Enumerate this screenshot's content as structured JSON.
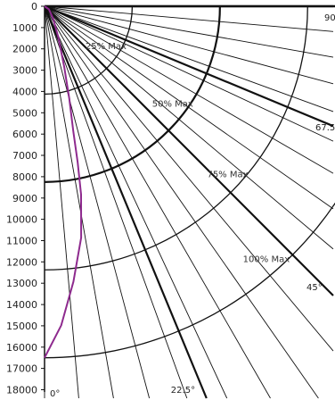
{
  "chart_data": {
    "type": "polar-distribution",
    "y_axis": {
      "ticks": [
        0,
        1000,
        2000,
        3000,
        4000,
        5000,
        6000,
        7000,
        8000,
        9000,
        10000,
        11000,
        12000,
        13000,
        14000,
        15000,
        16000,
        17000,
        18000
      ],
      "min": 0,
      "max": 18000
    },
    "angle_rays": [
      0,
      5,
      10,
      15,
      20,
      22.5,
      25,
      30,
      35,
      40,
      45,
      50,
      55,
      60,
      65,
      67.5,
      70,
      75,
      80,
      85,
      90
    ],
    "major_angles": [
      22.5,
      45,
      67.5,
      90
    ],
    "angle_labels": [
      {
        "angle": 0,
        "text": "0°"
      },
      {
        "angle": 22.5,
        "text": "22.5°"
      },
      {
        "angle": 45,
        "text": "45°"
      },
      {
        "angle": 67.5,
        "text": "67.5"
      },
      {
        "angle": 90,
        "text": "90"
      }
    ],
    "arcs": [
      {
        "radius": 4125,
        "label": "25% Max",
        "label_angle": 55
      },
      {
        "radius": 8250,
        "label": "50% Max",
        "label_angle": 52
      },
      {
        "radius": 12375,
        "label": "75% Max",
        "label_angle": 47
      },
      {
        "radius": 16500,
        "label": "100% Max",
        "label_angle": 41
      }
    ],
    "distribution_curve": {
      "color": "#8e2a8e",
      "points": [
        {
          "angle": 0,
          "value": 16500
        },
        {
          "angle": 3,
          "value": 15000
        },
        {
          "angle": 6,
          "value": 13000
        },
        {
          "angle": 9,
          "value": 11000
        },
        {
          "angle": 11,
          "value": 9000
        },
        {
          "angle": 12,
          "value": 7500
        },
        {
          "angle": 13,
          "value": 6000
        },
        {
          "angle": 15,
          "value": 4500
        },
        {
          "angle": 18,
          "value": 3000
        },
        {
          "angle": 24,
          "value": 1600
        },
        {
          "angle": 35,
          "value": 700
        },
        {
          "angle": 55,
          "value": 250
        },
        {
          "angle": 90,
          "value": 0
        }
      ]
    }
  }
}
